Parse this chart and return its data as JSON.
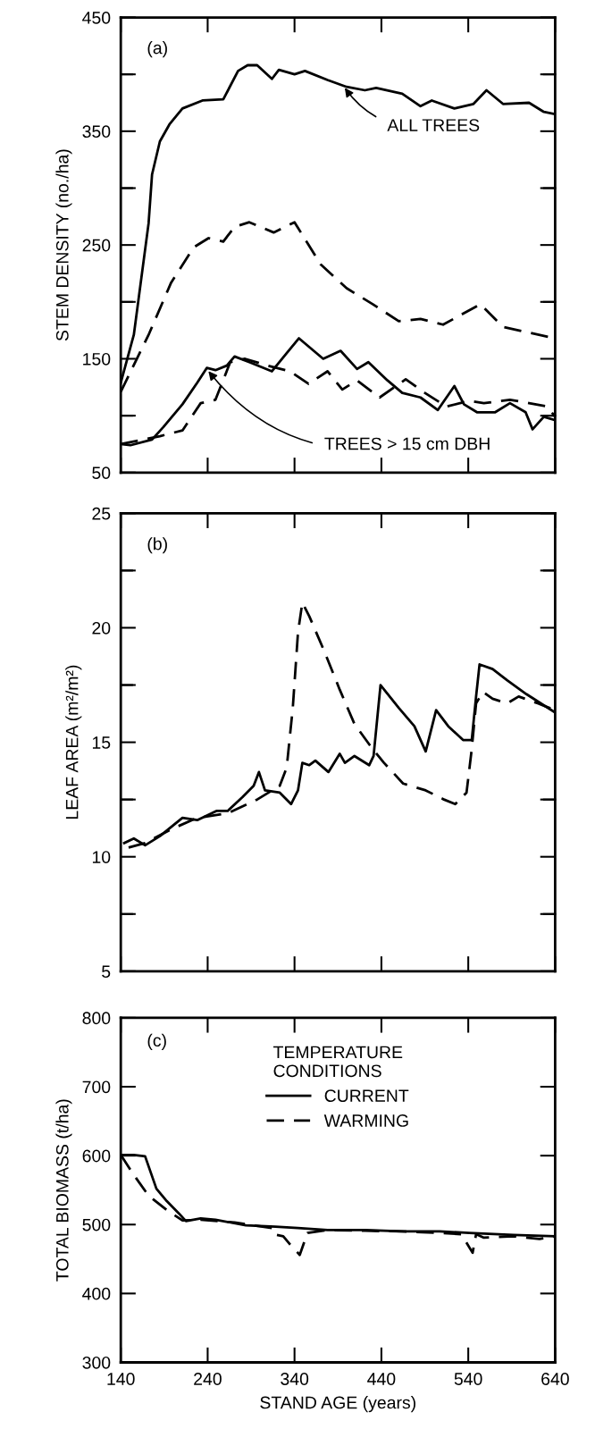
{
  "chart_data": [
    {
      "type": "line",
      "ylabel": "STEM DENSITY (no./ha)",
      "xlim": [
        140,
        640
      ],
      "xticks": [
        140,
        240,
        340,
        440,
        540,
        640
      ],
      "ylim": [
        50,
        450
      ],
      "yticks": [
        50,
        {
          "value": 100,
          "label": null
        },
        150,
        {
          "value": 200,
          "label": null
        },
        250,
        {
          "value": 300,
          "label": null
        },
        350,
        {
          "value": 400,
          "label": null
        },
        450
      ],
      "tick_labels": "y",
      "grid": false,
      "legend": false,
      "annotations": [
        "(a)",
        {
          "text": "ALL TREES",
          "x": 397,
          "y": 389
        },
        {
          "text": "TREES > 15 cm DBH",
          "x": 240,
          "y": 140
        }
      ],
      "series": [
        {
          "color": "#000000",
          "line_style": "solid",
          "x": [
            140,
            155,
            172,
            176,
            185,
            196,
            211,
            234,
            258,
            275,
            286,
            297,
            314,
            322,
            340,
            352,
            378,
            400,
            421,
            434,
            464,
            485,
            498,
            524,
            546,
            561,
            580,
            610,
            627,
            640
          ],
          "values": [
            129,
            171,
            269,
            312,
            341,
            356,
            370,
            377,
            378,
            403,
            408,
            408,
            396,
            404,
            400,
            403,
            395,
            389,
            386,
            388,
            383,
            372,
            377,
            370,
            374,
            386,
            374,
            375,
            367,
            365
          ]
        },
        {
          "color": "#000000",
          "line_style": "dashed",
          "x": [
            140,
            172,
            198,
            224,
            241,
            258,
            271,
            288,
            316,
            340,
            370,
            400,
            430,
            460,
            485,
            511,
            554,
            580,
            610,
            640
          ],
          "values": [
            121,
            171,
            217,
            248,
            256,
            253,
            266,
            270,
            261,
            270,
            233,
            212,
            198,
            183,
            185,
            180,
            198,
            178,
            173,
            168
          ]
        },
        {
          "color": "#000000",
          "line_style": "solid",
          "x": [
            140,
            151,
            176,
            189,
            211,
            228,
            239,
            249,
            262,
            271,
            288,
            314,
            331,
            345,
            373,
            393,
            412,
            425,
            447,
            464,
            485,
            505,
            524,
            535,
            550,
            571,
            588,
            606,
            614,
            627,
            640
          ],
          "values": [
            75,
            74,
            79,
            90,
            110,
            129,
            142,
            140,
            144,
            152,
            147,
            139,
            155,
            168,
            150,
            157,
            141,
            147,
            131,
            120,
            116,
            105,
            126,
            110,
            103,
            103,
            111,
            103,
            88,
            99,
            96
          ]
        },
        {
          "color": "#000000",
          "line_style": "dashed",
          "x": [
            140,
            185,
            211,
            232,
            249,
            266,
            283,
            309,
            335,
            356,
            378,
            395,
            412,
            438,
            468,
            490,
            515,
            541,
            558,
            588,
            610,
            631,
            640
          ],
          "values": [
            75,
            82,
            87,
            111,
            114,
            147,
            150,
            144,
            139,
            128,
            139,
            123,
            131,
            116,
            132,
            120,
            108,
            113,
            111,
            114,
            111,
            108,
            99
          ]
        }
      ]
    },
    {
      "type": "line",
      "ylabel": "LEAF AREA (m²/m²)",
      "xlim": [
        140,
        640
      ],
      "xticks": [
        140,
        240,
        340,
        440,
        540,
        640
      ],
      "ylim": [
        5,
        25
      ],
      "yticks": [
        5,
        {
          "value": 7.5,
          "label": null
        },
        10,
        {
          "value": 12.5,
          "label": null
        },
        15,
        {
          "value": 17.5,
          "label": null
        },
        20,
        {
          "value": 22.5,
          "label": null
        },
        25
      ],
      "tick_labels": "y",
      "grid": false,
      "legend": false,
      "annotations": [
        "(b)"
      ],
      "series": [
        {
          "color": "#000000",
          "line_style": "solid",
          "x": [
            144,
            155,
            168,
            185,
            211,
            228,
            250,
            263,
            280,
            293,
            299,
            306,
            323,
            336,
            344,
            349,
            357,
            364,
            379,
            392,
            398,
            409,
            426,
            431,
            439,
            460,
            478,
            491,
            503,
            517,
            534,
            544,
            549,
            553,
            568,
            585,
            607,
            640
          ],
          "values": [
            10.6,
            10.8,
            10.5,
            10.9,
            11.7,
            11.6,
            12.0,
            12.0,
            12.6,
            13.1,
            13.7,
            12.9,
            12.8,
            12.3,
            12.9,
            14.1,
            14.0,
            14.2,
            13.7,
            14.5,
            14.1,
            14.4,
            14.0,
            14.4,
            17.5,
            16.5,
            15.7,
            14.6,
            16.4,
            15.7,
            15.1,
            15.1,
            17.0,
            18.4,
            18.2,
            17.7,
            17.1,
            16.3
          ]
        },
        {
          "color": "#000000",
          "line_style": "dashed",
          "x": [
            149,
            168,
            198,
            228,
            263,
            297,
            323,
            331,
            338,
            344,
            349,
            357,
            374,
            392,
            409,
            430,
            443,
            465,
            491,
            512,
            525,
            538,
            544,
            549,
            557,
            568,
            585,
            598,
            620,
            640
          ],
          "values": [
            10.4,
            10.6,
            11.2,
            11.7,
            11.9,
            12.5,
            13.1,
            13.9,
            16.5,
            19.8,
            21.1,
            20.5,
            19.0,
            17.3,
            15.8,
            14.7,
            14.1,
            13.2,
            12.9,
            12.5,
            12.3,
            12.8,
            14.7,
            16.7,
            17.2,
            16.9,
            16.7,
            17.0,
            16.7,
            16.4
          ]
        }
      ]
    },
    {
      "type": "line",
      "ylabel": "TOTAL BIOMASS (t/ha)",
      "xlabel": "STAND AGE (years)",
      "legend_title": "TEMPERATURE\nCONDITIONS",
      "xlim": [
        140,
        640
      ],
      "xticks": [
        140,
        240,
        340,
        440,
        540,
        640
      ],
      "ylim": [
        300,
        800
      ],
      "yticks": [
        300,
        400,
        500,
        600,
        700,
        800
      ],
      "grid": false,
      "legend": "top",
      "annotations": [
        "(c)"
      ],
      "series": [
        {
          "name": "CURRENT",
          "color": "#000000",
          "line_style": "solid",
          "x": [
            140,
            155,
            168,
            181,
            193,
            207,
            215,
            232,
            249,
            284,
            318,
            344,
            378,
            421,
            464,
            507,
            541,
            592,
            640
          ],
          "values": [
            601,
            601,
            599,
            552,
            534,
            516,
            505,
            509,
            507,
            499,
            497,
            495,
            492,
            492,
            490,
            490,
            488,
            485,
            483
          ]
        },
        {
          "name": "WARMING",
          "color": "#000000",
          "line_style": "dashed",
          "x": [
            140,
            155,
            172,
            193,
            211,
            232,
            271,
            314,
            316,
            327,
            335,
            346,
            355,
            378,
            421,
            464,
            507,
            532,
            545,
            549,
            558,
            592,
            622,
            640
          ],
          "values": [
            601,
            572,
            542,
            521,
            506,
            507,
            503,
            495,
            486,
            483,
            471,
            456,
            488,
            492,
            491,
            490,
            488,
            486,
            459,
            486,
            481,
            483,
            479,
            483
          ]
        }
      ]
    }
  ]
}
